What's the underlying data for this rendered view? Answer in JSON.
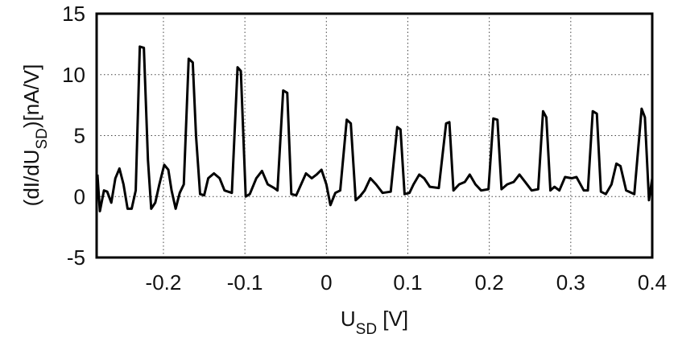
{
  "chart_data": {
    "type": "line",
    "xlabel": {
      "main": "U",
      "sub": "SD",
      "rest": " [V]"
    },
    "ylabel": {
      "main": "(dI/dU",
      "sub": "SD",
      "rest": ")[nA/V]"
    },
    "xlim": [
      -0.282,
      0.4
    ],
    "ylim": [
      -5,
      15
    ],
    "xticks": [
      -0.2,
      -0.1,
      0,
      0.1,
      0.2,
      0.3,
      0.4
    ],
    "yticks": [
      -5,
      0,
      5,
      10,
      15
    ],
    "grid": true,
    "series": [
      {
        "color": "#000000",
        "x": [
          -0.281,
          -0.278,
          -0.273,
          -0.269,
          -0.264,
          -0.259,
          -0.254,
          -0.249,
          -0.244,
          -0.239,
          -0.234,
          -0.229,
          -0.224,
          -0.219,
          -0.215,
          -0.21,
          -0.205,
          -0.199,
          -0.194,
          -0.19,
          -0.185,
          -0.18,
          -0.175,
          -0.169,
          -0.164,
          -0.16,
          -0.155,
          -0.15,
          -0.145,
          -0.138,
          -0.131,
          -0.125,
          -0.116,
          -0.109,
          -0.105,
          -0.099,
          -0.094,
          -0.086,
          -0.079,
          -0.072,
          -0.064,
          -0.06,
          -0.053,
          -0.048,
          -0.043,
          -0.037,
          -0.031,
          -0.025,
          -0.018,
          -0.012,
          -0.006,
          0,
          0.005,
          0.011,
          0.017,
          0.025,
          0.03,
          0.036,
          0.041,
          0.047,
          0.054,
          0.061,
          0.069,
          0.079,
          0.087,
          0.091,
          0.096,
          0.102,
          0.107,
          0.114,
          0.12,
          0.127,
          0.138,
          0.147,
          0.151,
          0.156,
          0.163,
          0.17,
          0.176,
          0.183,
          0.19,
          0.199,
          0.205,
          0.21,
          0.215,
          0.222,
          0.23,
          0.237,
          0.244,
          0.252,
          0.26,
          0.266,
          0.27,
          0.275,
          0.28,
          0.286,
          0.293,
          0.301,
          0.307,
          0.316,
          0.321,
          0.327,
          0.332,
          0.337,
          0.343,
          0.35,
          0.356,
          0.361,
          0.368,
          0.378,
          0.387,
          0.391,
          0.396,
          0.4
        ],
        "values": [
          1.8,
          -1.2,
          0.5,
          0.4,
          -0.5,
          1.5,
          2.3,
          1.0,
          -1,
          -1,
          0.5,
          12.3,
          12.2,
          3,
          -1,
          -0.5,
          1,
          2.6,
          2.2,
          0.5,
          -1,
          0.3,
          1,
          11.3,
          11,
          5,
          0.2,
          0.1,
          1.5,
          1.9,
          1.5,
          0.5,
          0.3,
          10.6,
          10.3,
          0,
          0.2,
          1.5,
          2.1,
          1,
          0.7,
          0.5,
          8.7,
          8.5,
          0.2,
          0.1,
          1,
          1.9,
          1.5,
          1.8,
          2.2,
          1,
          -0.7,
          0.3,
          0.5,
          6.3,
          6,
          -0.3,
          0,
          0.5,
          1.5,
          1,
          0.3,
          0.4,
          5.7,
          5.5,
          0.2,
          0.3,
          1,
          1.8,
          1.5,
          0.8,
          0.7,
          6,
          6.1,
          0.5,
          1,
          1.2,
          1.8,
          1,
          0.5,
          0.6,
          6.4,
          6.3,
          0.6,
          1,
          1.2,
          1.8,
          1.2,
          0.5,
          0.6,
          7,
          6.5,
          0.5,
          0.8,
          0.5,
          1.6,
          1.5,
          1.6,
          0.5,
          0.5,
          7,
          6.8,
          0.4,
          0.2,
          1,
          2.7,
          2.5,
          0.5,
          0.2,
          7.2,
          6.5,
          -0.3,
          1.5
        ]
      }
    ]
  }
}
